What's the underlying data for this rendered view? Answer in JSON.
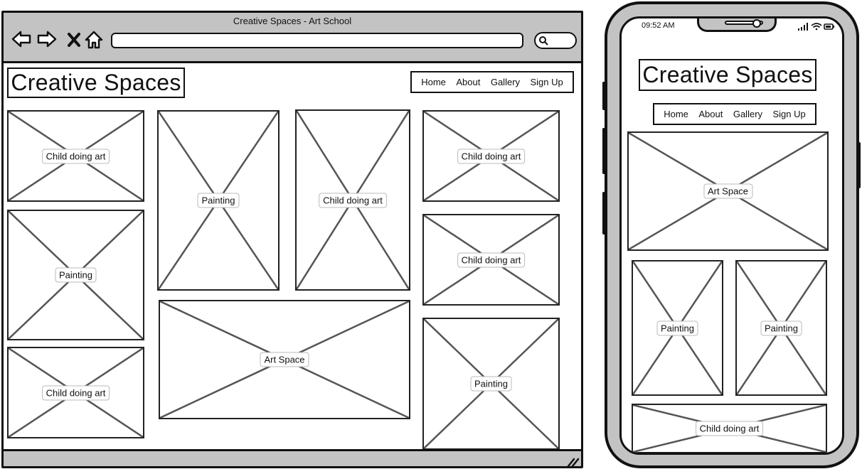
{
  "browser": {
    "title": "Creative Spaces - Art School",
    "toolbar_icons": [
      "back-arrow-icon",
      "forward-arrow-icon",
      "close-icon",
      "home-icon",
      "search-icon",
      "resize-grip-icon"
    ]
  },
  "site": {
    "logo": "Creative Spaces",
    "nav": [
      "Home",
      "About",
      "Gallery",
      "Sign Up"
    ]
  },
  "desktop_gallery": [
    "Child doing art",
    "Painting",
    "Child doing art",
    "Painting",
    "Child doing art",
    "Child doing art",
    "Child doing art",
    "Art Space",
    "Painting"
  ],
  "phone": {
    "status_time": "09:52 AM",
    "status_icons": [
      "signal-icon",
      "wifi-icon",
      "battery-icon"
    ],
    "logo": "Creative Spaces",
    "nav": [
      "Home",
      "About",
      "Gallery",
      "Sign Up"
    ],
    "gallery": [
      "Art Space",
      "Painting",
      "Painting",
      "Child doing art"
    ]
  },
  "colors": {
    "chrome_gray": "#c3c3c3",
    "outline": "#111111",
    "placeholder_x": "#555555"
  }
}
